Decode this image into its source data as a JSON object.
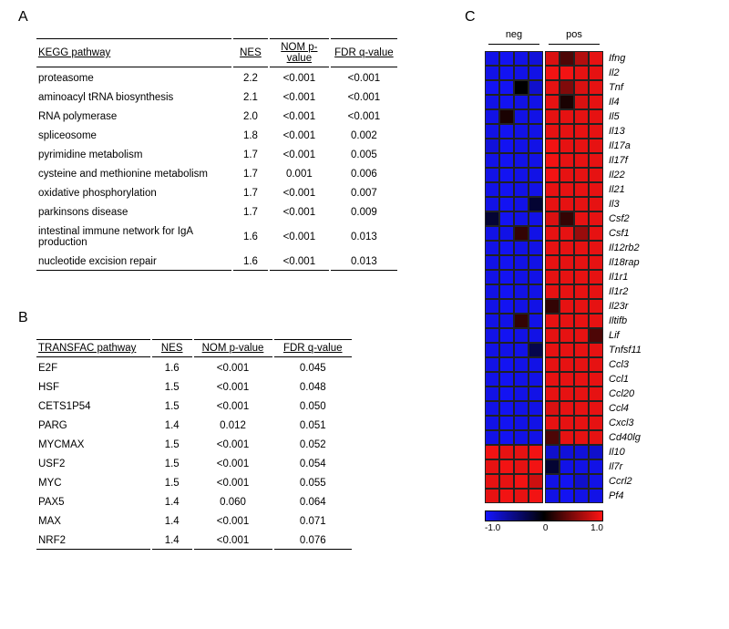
{
  "letters": {
    "A": "A",
    "B": "B",
    "C": "C"
  },
  "tableA": {
    "header": {
      "path": "KEGG pathway",
      "nes": "NES",
      "nom": "NOM   p-value",
      "fdr": "FDR q-value"
    },
    "rows": [
      {
        "path": "proteasome",
        "nes": "2.2",
        "nom": "<0.001",
        "fdr": "<0.001"
      },
      {
        "path": "aminoacyl tRNA biosynthesis",
        "nes": "2.1",
        "nom": "<0.001",
        "fdr": "<0.001"
      },
      {
        "path": "RNA polymerase",
        "nes": "2.0",
        "nom": "<0.001",
        "fdr": "<0.001"
      },
      {
        "path": "spliceosome",
        "nes": "1.8",
        "nom": "<0.001",
        "fdr": "0.002"
      },
      {
        "path": "pyrimidine metabolism",
        "nes": "1.7",
        "nom": "<0.001",
        "fdr": "0.005"
      },
      {
        "path": "cysteine and methionine metabolism",
        "nes": "1.7",
        "nom": "0.001",
        "fdr": "0.006"
      },
      {
        "path": "oxidative phosphorylation",
        "nes": "1.7",
        "nom": "<0.001",
        "fdr": "0.007"
      },
      {
        "path": "parkinsons disease",
        "nes": "1.7",
        "nom": "<0.001",
        "fdr": "0.009"
      },
      {
        "path": "intestinal immune network for IgA production",
        "nes": "1.6",
        "nom": "<0.001",
        "fdr": "0.013"
      },
      {
        "path": "nucleotide excision repair",
        "nes": "1.6",
        "nom": "<0.001",
        "fdr": "0.013"
      }
    ]
  },
  "tableB": {
    "header": {
      "path": "TRANSFAC pathway",
      "nes": "NES",
      "nom": "NOM p-value",
      "fdr": "FDR q-value"
    },
    "rows": [
      {
        "path": "E2F",
        "nes": "1.6",
        "nom": "<0.001",
        "fdr": "0.045"
      },
      {
        "path": "HSF",
        "nes": "1.5",
        "nom": "<0.001",
        "fdr": "0.048"
      },
      {
        "path": "CETS1P54",
        "nes": "1.5",
        "nom": "<0.001",
        "fdr": "0.050"
      },
      {
        "path": "PARG",
        "nes": "1.4",
        "nom": "0.012",
        "fdr": "0.051"
      },
      {
        "path": "MYCMAX",
        "nes": "1.5",
        "nom": "<0.001",
        "fdr": "0.052"
      },
      {
        "path": "USF2",
        "nes": "1.5",
        "nom": "<0.001",
        "fdr": "0.054"
      },
      {
        "path": "MYC",
        "nes": "1.5",
        "nom": "<0.001",
        "fdr": "0.055"
      },
      {
        "path": "PAX5",
        "nes": "1.4",
        "nom": "0.060",
        "fdr": "0.064"
      },
      {
        "path": "MAX",
        "nes": "1.4",
        "nom": "<0.001",
        "fdr": "0.071"
      },
      {
        "path": "NRF2",
        "nes": "1.4",
        "nom": "<0.001",
        "fdr": "0.076"
      }
    ]
  },
  "heatmap": {
    "groups": {
      "neg": "neg",
      "pos": "pos"
    },
    "cellSize": 16,
    "gap": 2,
    "negCount": 4,
    "posCount": 4,
    "genes": [
      "Ifng",
      "Il2",
      "Tnf",
      "Il4",
      "Il5",
      "Il13",
      "Il17a",
      "Il17f",
      "Il22",
      "Il21",
      "Il3",
      "Csf2",
      "Csf1",
      "Il12rb2",
      "Il18rap",
      "Il1r1",
      "Il1r2",
      "Il23r",
      "Iltifb",
      "Lif",
      "Tnfsf11",
      "Ccl3",
      "Ccl1",
      "Ccl20",
      "Ccl4",
      "Cxcl3",
      "Cd40lg",
      "Il10",
      "Il7r",
      "Ccrl2",
      "Pf4"
    ],
    "values": [
      [
        -0.9,
        -0.95,
        -0.9,
        -0.85,
        0.85,
        0.3,
        0.7,
        0.9
      ],
      [
        -0.9,
        -0.95,
        -0.9,
        -0.9,
        0.95,
        0.95,
        0.9,
        0.9
      ],
      [
        -0.95,
        -0.95,
        0.0,
        -0.8,
        0.9,
        0.5,
        0.85,
        0.9
      ],
      [
        -0.9,
        -0.95,
        -0.9,
        -0.9,
        0.9,
        0.1,
        0.85,
        0.9
      ],
      [
        -0.9,
        0.1,
        -0.9,
        -0.9,
        0.9,
        0.9,
        0.9,
        0.9
      ],
      [
        -0.9,
        -0.95,
        -0.9,
        -0.9,
        0.9,
        0.9,
        0.9,
        0.9
      ],
      [
        -0.85,
        -0.95,
        -0.9,
        -0.9,
        0.95,
        0.9,
        0.9,
        0.9
      ],
      [
        -0.9,
        -0.95,
        -0.9,
        -0.9,
        0.95,
        0.9,
        0.9,
        0.9
      ],
      [
        -0.9,
        -0.95,
        -0.9,
        -0.9,
        0.95,
        0.9,
        0.9,
        0.9
      ],
      [
        -0.9,
        -0.95,
        -0.9,
        -0.9,
        0.9,
        0.9,
        0.9,
        0.9
      ],
      [
        -0.9,
        -0.95,
        -0.9,
        -0.2,
        0.9,
        0.9,
        0.9,
        0.9
      ],
      [
        -0.2,
        -0.95,
        -0.9,
        -0.9,
        0.85,
        0.2,
        0.9,
        0.9
      ],
      [
        -0.9,
        -0.9,
        0.2,
        -0.9,
        0.9,
        0.9,
        0.6,
        0.9
      ],
      [
        -0.9,
        -0.95,
        -0.9,
        -0.9,
        0.9,
        0.9,
        0.9,
        0.9
      ],
      [
        -0.9,
        -0.95,
        -0.9,
        -0.9,
        0.9,
        0.9,
        0.9,
        0.9
      ],
      [
        -0.9,
        -0.95,
        -0.9,
        -0.9,
        0.9,
        0.9,
        0.9,
        0.9
      ],
      [
        -0.9,
        -0.95,
        -0.9,
        -0.9,
        0.9,
        0.9,
        0.9,
        0.9
      ],
      [
        -0.9,
        -0.95,
        -0.9,
        -0.9,
        0.2,
        0.9,
        0.9,
        0.9
      ],
      [
        -0.9,
        -0.9,
        0.2,
        -0.9,
        0.9,
        0.9,
        0.9,
        0.9
      ],
      [
        -0.9,
        -0.95,
        -0.9,
        -0.9,
        0.9,
        0.9,
        0.9,
        0.3
      ],
      [
        -0.9,
        -0.9,
        -0.9,
        -0.3,
        0.9,
        0.9,
        0.9,
        0.9
      ],
      [
        -0.9,
        -0.95,
        -0.9,
        -0.9,
        0.9,
        0.9,
        0.9,
        0.9
      ],
      [
        -0.9,
        -0.95,
        -0.9,
        -0.9,
        0.9,
        0.9,
        0.9,
        0.9
      ],
      [
        -0.9,
        -0.95,
        -0.9,
        -0.9,
        0.9,
        0.9,
        0.9,
        0.9
      ],
      [
        -0.9,
        -0.95,
        -0.9,
        -0.9,
        0.85,
        0.9,
        0.9,
        0.9
      ],
      [
        -0.9,
        -0.95,
        -0.9,
        -0.9,
        0.9,
        0.9,
        0.9,
        0.9
      ],
      [
        -0.9,
        -0.95,
        -0.9,
        -0.9,
        0.3,
        0.9,
        0.9,
        0.9
      ],
      [
        0.95,
        0.9,
        0.9,
        0.95,
        -0.8,
        -0.85,
        -0.85,
        -0.8
      ],
      [
        0.9,
        0.95,
        0.9,
        0.95,
        -0.2,
        -0.9,
        -0.9,
        -0.9
      ],
      [
        0.9,
        0.9,
        0.95,
        0.8,
        -0.9,
        -0.95,
        -0.8,
        -0.9
      ],
      [
        0.9,
        0.95,
        0.9,
        0.95,
        -0.9,
        -0.95,
        -0.9,
        -0.9
      ]
    ],
    "colorLow": "#1414ff",
    "colorMid": "#000000",
    "colorHigh": "#ff1414"
  },
  "legend": {
    "min": "-1.0",
    "mid": "0",
    "max": "1.0"
  }
}
